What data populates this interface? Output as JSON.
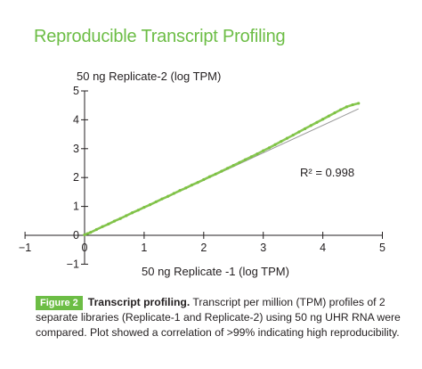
{
  "figure": {
    "title": "Reproducible Transcript Profiling",
    "caption_badge": "Figure 2",
    "caption_bold": "Transcript profiling.",
    "caption_text": "Transcript per million (TPM) profiles of 2 separate libraries (Replicate-1 and Replicate-2) using 50 ng UHR RNA were compared. Plot showed a correlation of >99% indicating high reproducibility.",
    "annotation": "R² = 0.998"
  },
  "colors": {
    "accent": "#6cbd45",
    "points": "#7dc242",
    "fit_line": "#9a9a9a",
    "axis": "#231f20"
  },
  "chart_data": {
    "type": "scatter",
    "title": "",
    "xlabel": "50 ng Replicate -1 (log TPM)",
    "ylabel": "50 ng Replicate-2 (log TPM)",
    "xlim": [
      -1,
      5
    ],
    "ylim": [
      -1,
      5
    ],
    "xticks": [
      -1,
      0,
      1,
      2,
      3,
      4,
      5
    ],
    "yticks": [
      -1,
      0,
      1,
      2,
      3,
      4,
      5
    ],
    "grid": false,
    "legend": "none",
    "trendline": {
      "from": [
        0,
        0
      ],
      "to": [
        4.6,
        4.38
      ],
      "r_squared": 0.998
    },
    "series": [
      {
        "values": [
          [
            0,
            0.02
          ],
          [
            0.05,
            0.06
          ],
          [
            0.1,
            0.1
          ],
          [
            0.2,
            0.2
          ],
          [
            0.3,
            0.3
          ],
          [
            0.4,
            0.39
          ],
          [
            0.5,
            0.49
          ],
          [
            0.6,
            0.58
          ],
          [
            0.7,
            0.68
          ],
          [
            0.8,
            0.78
          ],
          [
            0.9,
            0.87
          ],
          [
            1.0,
            0.97
          ],
          [
            1.1,
            1.06
          ],
          [
            1.2,
            1.16
          ],
          [
            1.3,
            1.26
          ],
          [
            1.4,
            1.35
          ],
          [
            1.5,
            1.45
          ],
          [
            1.6,
            1.55
          ],
          [
            1.7,
            1.64
          ],
          [
            1.8,
            1.74
          ],
          [
            1.9,
            1.83
          ],
          [
            2.0,
            1.93
          ],
          [
            2.1,
            2.03
          ],
          [
            2.2,
            2.12
          ],
          [
            2.3,
            2.22
          ],
          [
            2.4,
            2.32
          ],
          [
            2.5,
            2.42
          ],
          [
            2.6,
            2.52
          ],
          [
            2.7,
            2.62
          ],
          [
            2.8,
            2.72
          ],
          [
            2.9,
            2.82
          ],
          [
            3.0,
            2.93
          ],
          [
            3.1,
            3.03
          ],
          [
            3.2,
            3.14
          ],
          [
            3.3,
            3.25
          ],
          [
            3.4,
            3.36
          ],
          [
            3.5,
            3.47
          ],
          [
            3.6,
            3.58
          ],
          [
            3.7,
            3.69
          ],
          [
            3.8,
            3.8
          ],
          [
            3.9,
            3.91
          ],
          [
            4.0,
            4.02
          ],
          [
            4.1,
            4.13
          ],
          [
            4.2,
            4.24
          ],
          [
            4.3,
            4.35
          ],
          [
            4.4,
            4.45
          ],
          [
            4.5,
            4.52
          ],
          [
            4.6,
            4.57
          ]
        ]
      }
    ]
  }
}
